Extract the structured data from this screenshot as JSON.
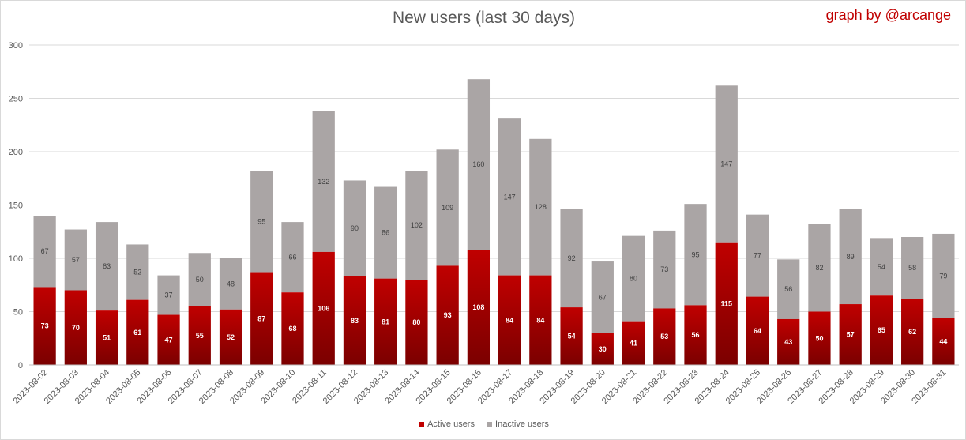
{
  "header": {
    "title": "New users (last 30 days)",
    "credit": "graph by @arcange"
  },
  "colors": {
    "active": "#c00000",
    "active_dark": "#7b0000",
    "inactive": "#aaa5a5",
    "grid": "#d9d9d9",
    "axis_text": "#595959"
  },
  "chart_data": {
    "type": "bar",
    "stacked": true,
    "title": "New users (last 30 days)",
    "xlabel": "",
    "ylabel": "",
    "ylim": [
      0,
      300
    ],
    "yticks": [
      0,
      50,
      100,
      150,
      200,
      250,
      300
    ],
    "grid": true,
    "legend_position": "bottom",
    "categories": [
      "2023-08-02",
      "2023-08-03",
      "2023-08-04",
      "2023-08-05",
      "2023-08-06",
      "2023-08-07",
      "2023-08-08",
      "2023-08-09",
      "2023-08-10",
      "2023-08-11",
      "2023-08-12",
      "2023-08-13",
      "2023-08-14",
      "2023-08-15",
      "2023-08-16",
      "2023-08-17",
      "2023-08-18",
      "2023-08-19",
      "2023-08-20",
      "2023-08-21",
      "2023-08-22",
      "2023-08-23",
      "2023-08-24",
      "2023-08-25",
      "2023-08-26",
      "2023-08-27",
      "2023-08-28",
      "2023-08-29",
      "2023-08-30",
      "2023-08-31"
    ],
    "series": [
      {
        "name": "Active users",
        "values": [
          73,
          70,
          51,
          61,
          47,
          55,
          52,
          87,
          68,
          106,
          83,
          81,
          80,
          93,
          108,
          84,
          84,
          54,
          30,
          41,
          53,
          56,
          115,
          64,
          43,
          50,
          57,
          65,
          62,
          44
        ]
      },
      {
        "name": "Inactive users",
        "values": [
          67,
          57,
          83,
          52,
          37,
          50,
          48,
          95,
          66,
          132,
          90,
          86,
          102,
          109,
          160,
          147,
          128,
          92,
          67,
          80,
          73,
          95,
          147,
          77,
          56,
          82,
          89,
          54,
          58,
          79
        ]
      }
    ]
  }
}
